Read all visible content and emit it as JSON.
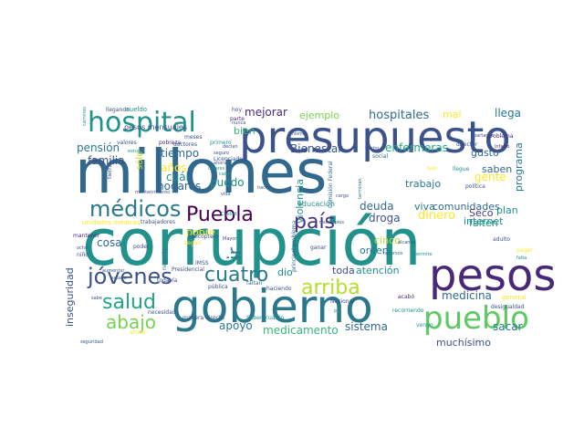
{
  "wordcloud": {
    "words": [
      {
        "text": "millones",
        "color": "#31688e"
      },
      {
        "text": "corrupción",
        "color": "#21918c"
      },
      {
        "text": "presupuesto",
        "color": "#3b528b"
      },
      {
        "text": "gobierno",
        "color": "#2a788e"
      },
      {
        "text": "pesos",
        "color": "#482878"
      },
      {
        "text": "pueblo",
        "color": "#5ec962"
      },
      {
        "text": "hospital",
        "color": "#21918c"
      },
      {
        "text": "jóvenes",
        "color": "#3b528b"
      },
      {
        "text": "médicos",
        "color": "#2a788e"
      },
      {
        "text": "Puebla",
        "color": "#440154"
      },
      {
        "text": "país",
        "color": "#46327e"
      },
      {
        "text": "cuatro",
        "color": "#2a788e"
      },
      {
        "text": "salud",
        "color": "#20a486"
      },
      {
        "text": "arriba",
        "color": "#b5de2b"
      },
      {
        "text": "abajo",
        "color": "#7ad151"
      },
      {
        "text": "mejorar",
        "color": "#482878"
      },
      {
        "text": "ejemplo",
        "color": "#7ad151"
      },
      {
        "text": "hospitales",
        "color": "#31688e"
      },
      {
        "text": "llega",
        "color": "#2a788e"
      },
      {
        "text": "mal",
        "color": "#fde725"
      },
      {
        "text": "bien",
        "color": "#35b779"
      },
      {
        "text": "pensión",
        "color": "#2a788e"
      },
      {
        "text": "familia",
        "color": "#3b528b"
      },
      {
        "text": "tiempo",
        "color": "#31688e"
      },
      {
        "text": "años",
        "color": "#fde725"
      },
      {
        "text": "cuál",
        "color": "#21918c"
      },
      {
        "text": "hogares",
        "color": "#31688e"
      },
      {
        "text": "puedo",
        "color": "#21918c"
      },
      {
        "text": "Bienestar",
        "color": "#3b528b"
      },
      {
        "text": "enfermeras",
        "color": "#22a884"
      },
      {
        "text": "gusto",
        "color": "#31688e"
      },
      {
        "text": "saben",
        "color": "#31688e"
      },
      {
        "text": "gente",
        "color": "#fde725"
      },
      {
        "text": "programa",
        "color": "#2a788e"
      },
      {
        "text": "violencia",
        "color": "#21918c"
      },
      {
        "text": "trabajo",
        "color": "#2a788e"
      },
      {
        "text": "deuda",
        "color": "#31688e"
      },
      {
        "text": "viva",
        "color": "#2a788e"
      },
      {
        "text": "comunidades",
        "color": "#31688e"
      },
      {
        "text": "plan",
        "color": "#21918c"
      },
      {
        "text": "Seco",
        "color": "#443a83"
      },
      {
        "text": "dinero",
        "color": "#fde725"
      },
      {
        "text": "falten",
        "color": "#21918c"
      },
      {
        "text": "droga",
        "color": "#3b528b"
      },
      {
        "text": "internet",
        "color": "#21918c"
      },
      {
        "text": "cosa",
        "color": "#31688e"
      },
      {
        "text": "ir",
        "color": "#2a788e"
      },
      {
        "text": "pobre",
        "color": "#fde725"
      },
      {
        "text": "cinco",
        "color": "#bddf26"
      },
      {
        "text": "orden",
        "color": "#2a788e"
      },
      {
        "text": "dio",
        "color": "#21918c"
      },
      {
        "text": "toda",
        "color": "#3b528b"
      },
      {
        "text": "atención",
        "color": "#21918c"
      },
      {
        "text": "medicina",
        "color": "#31688e"
      },
      {
        "text": "inseguridad",
        "color": "#3b528b"
      },
      {
        "text": "apoyo",
        "color": "#2a788e"
      },
      {
        "text": "medicamento",
        "color": "#35b779"
      },
      {
        "text": "sistema",
        "color": "#31688e"
      },
      {
        "text": "muchísimo",
        "color": "#3b528b"
      },
      {
        "text": "sacar",
        "color": "#2a788e"
      },
      {
        "text": "sólo",
        "color": "#bddf26"
      },
      {
        "text": "pesos mensuales",
        "color": "#3b528b"
      },
      {
        "text": "llegando",
        "color": "#3b528b"
      },
      {
        "text": "sueldo",
        "color": "#21918c"
      },
      {
        "text": "hoy",
        "color": "#3b528b"
      },
      {
        "text": "parte",
        "color": "#482878"
      },
      {
        "text": "meses",
        "color": "#3b528b"
      },
      {
        "text": "valores",
        "color": "#3b528b"
      },
      {
        "text": "pobreza",
        "color": "#482878"
      },
      {
        "text": "doctores",
        "color": "#3b528b"
      },
      {
        "text": "primero",
        "color": "#21918c"
      },
      {
        "text": "director",
        "color": "#3b528b"
      },
      {
        "text": "problema",
        "color": "#482878"
      },
      {
        "text": "infarto",
        "color": "#482878"
      },
      {
        "text": "educación",
        "color": "#21918c"
      },
      {
        "text": "Licenciado",
        "color": "#3b528b"
      },
      {
        "text": "tierra",
        "color": "#3b528b"
      },
      {
        "text": "dólares",
        "color": "#21918c"
      },
      {
        "text": "social",
        "color": "#31688e"
      },
      {
        "text": "llegue",
        "color": "#21918c"
      },
      {
        "text": "política",
        "color": "#3b528b"
      },
      {
        "text": "trabajadores",
        "color": "#3b528b"
      },
      {
        "text": "unidades médicas",
        "color": "#fde725"
      },
      {
        "text": "municipios",
        "color": "#3b528b"
      },
      {
        "text": "mantener",
        "color": "#482878"
      },
      {
        "text": "helicóptero",
        "color": "#3b528b"
      },
      {
        "text": "seguir",
        "color": "#fde725"
      },
      {
        "text": "IMSS",
        "color": "#3b528b"
      },
      {
        "text": "poder",
        "color": "#3b528b"
      },
      {
        "text": "ganar",
        "color": "#3b528b"
      },
      {
        "text": "Presidencial",
        "color": "#3b528b"
      },
      {
        "text": "principal problema",
        "color": "#31688e"
      },
      {
        "text": "pública",
        "color": "#3b528b"
      },
      {
        "text": "faltan",
        "color": "#31688e"
      },
      {
        "text": "haciendo",
        "color": "#3b528b"
      },
      {
        "text": "acabó",
        "color": "#482878"
      },
      {
        "text": "general",
        "color": "#fde725"
      },
      {
        "text": "necesidad",
        "color": "#3b528b"
      },
      {
        "text": "manera directa",
        "color": "#3b528b"
      },
      {
        "text": "Saben cuánto",
        "color": "#21918c"
      },
      {
        "text": "todavía",
        "color": "#3b528b"
      },
      {
        "text": "Nacional",
        "color": "#3b528b"
      },
      {
        "text": "recorriendo",
        "color": "#21918c"
      },
      {
        "text": "desigualdad",
        "color": "#3b528b"
      },
      {
        "text": "adulto",
        "color": "#3b528b"
      },
      {
        "text": "vengo",
        "color": "#21918c"
      },
      {
        "text": "Comisión Federal",
        "color": "#31688e"
      },
      {
        "text": "Mayor",
        "color": "#3b528b"
      },
      {
        "text": "Ciudad",
        "color": "#21918c"
      },
      {
        "text": "mantenimiento",
        "color": "#3b528b"
      },
      {
        "text": "negocio",
        "color": "#31688e"
      },
      {
        "text": "mismo",
        "color": "#3b528b"
      },
      {
        "text": "seguro",
        "color": "#3b528b"
      },
      {
        "text": "declan",
        "color": "#3b528b"
      },
      {
        "text": "nunca",
        "color": "#3b528b"
      },
      {
        "text": "terminan",
        "color": "#31688e"
      },
      {
        "text": "apartados",
        "color": "#3b528b"
      },
      {
        "text": "caminos",
        "color": "#21918c"
      },
      {
        "text": "estudio",
        "color": "#21918c"
      },
      {
        "text": "bajo",
        "color": "#fde725"
      },
      {
        "text": "hecho",
        "color": "#3b528b"
      },
      {
        "text": "ocho",
        "color": "#3b528b"
      },
      {
        "text": "niño",
        "color": "#3b528b"
      },
      {
        "text": "hacer",
        "color": "#3b528b"
      },
      {
        "text": "cada",
        "color": "#21918c"
      },
      {
        "text": "vida",
        "color": "#3b528b"
      },
      {
        "text": "ahora",
        "color": "#3b528b"
      },
      {
        "text": "pagar",
        "color": "#fde725"
      },
      {
        "text": "falta",
        "color": "#21918c"
      },
      {
        "text": "recursos",
        "color": "#31688e"
      },
      {
        "text": "alcanza",
        "color": "#3b528b"
      },
      {
        "text": "permite",
        "color": "#21918c"
      },
      {
        "text": "salario",
        "color": "#3b528b"
      },
      {
        "text": "aumentar",
        "color": "#3b528b"
      },
      {
        "text": "sabe",
        "color": "#3b528b"
      },
      {
        "text": "seguridad",
        "color": "#3b528b"
      },
      {
        "text": "atraso",
        "color": "#fde725"
      },
      {
        "text": "pie",
        "color": "#21918c"
      },
      {
        "text": "cargo",
        "color": "#3b528b"
      }
    ]
  }
}
